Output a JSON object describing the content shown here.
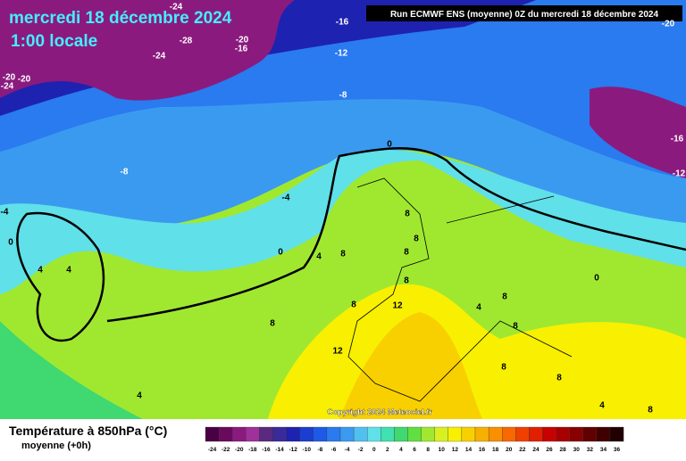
{
  "header": {
    "date": "mercredi 18 décembre 2024",
    "time": "1:00 locale",
    "run": "Run ECMWF ENS (moyenne) 0Z du mercredi 18 décembre 2024",
    "copyright": "Copyright 2024 Meteociel.fr"
  },
  "legend": {
    "title": "Température à 850hPa (°C)",
    "subtitle": "moyenne  (+0h)",
    "stops": [
      -24,
      -22,
      -20,
      -18,
      -16,
      -14,
      -12,
      -10,
      -8,
      -6,
      -4,
      -2,
      0,
      2,
      4,
      6,
      8,
      10,
      12,
      14,
      16,
      18,
      20,
      22,
      24,
      26,
      28,
      30,
      32,
      34,
      36
    ],
    "colors": [
      "#4a0044",
      "#6a0a5f",
      "#8b1a7e",
      "#a0309a",
      "#5a2a80",
      "#3a2a9a",
      "#1e22b0",
      "#1a3ed0",
      "#1e5ae8",
      "#2a7af0",
      "#3a9af0",
      "#50c0f0",
      "#60e0e8",
      "#40e0b0",
      "#40d870",
      "#60e040",
      "#a0e830",
      "#d8f020",
      "#f8f000",
      "#f8d000",
      "#f8b000",
      "#f89000",
      "#f86800",
      "#f04000",
      "#e02000",
      "#c80000",
      "#a80000",
      "#880000",
      "#600000",
      "#400000",
      "#200000"
    ]
  },
  "contour_labels": [
    -24,
    -16,
    -28,
    -20,
    -16,
    -24,
    -12,
    -20,
    -20,
    -24,
    -8,
    -8,
    0,
    -4,
    -16,
    -12,
    0,
    4,
    4,
    0,
    4,
    8,
    8,
    8,
    8,
    8,
    8,
    12,
    8,
    12,
    4,
    8,
    8,
    0,
    8,
    8,
    4,
    4,
    8,
    -4,
    -20
  ]
}
